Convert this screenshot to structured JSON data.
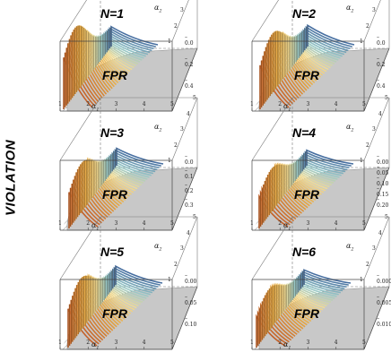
{
  "side_label": "VIOLATION",
  "floor_label": "FPR",
  "x_axis_label": "α",
  "x_axis_subscript": "1",
  "y_axis_label": "α",
  "y_axis_subscript": "2",
  "colors": {
    "floor": "#c8c8c8",
    "surface_stroke": "#3a2a10",
    "hatch": "#555555"
  },
  "chart_data": [
    {
      "type": "surface3d",
      "title": "N=1",
      "x_ticks": [
        "1",
        "2",
        "3",
        "4",
        "5"
      ],
      "y_ticks": [
        "1",
        "2",
        "3",
        "4",
        "5"
      ],
      "z_ticks": [
        "0.4",
        "0.2",
        "0.0"
      ],
      "z_ticks_shown": [
        "– 0.4",
        "– 0.2",
        "– 0.0"
      ],
      "peak": {
        "alpha1": 1.0,
        "height_frac": 1.0
      }
    },
    {
      "type": "surface3d",
      "title": "N=2",
      "x_ticks": [
        "1",
        "2",
        "3",
        "4",
        "5"
      ],
      "y_ticks": [
        "1",
        "2",
        "3",
        "4",
        "5"
      ],
      "z_ticks": [
        "0.4",
        "0.2",
        "0.0"
      ],
      "z_ticks_shown": [
        "– 0.4",
        "– 0.2",
        "– 0.0"
      ],
      "peak": {
        "alpha1": 1.5,
        "height_frac": 0.85
      }
    },
    {
      "type": "surface3d",
      "title": "N=3",
      "x_ticks": [
        "1",
        "2",
        "3",
        "4",
        "5"
      ],
      "y_ticks": [
        "1",
        "2",
        "3",
        "4",
        "5"
      ],
      "z_ticks": [
        "0.3",
        "0.2",
        "0.1",
        "0.0"
      ],
      "z_ticks_shown": [
        "– 0.3",
        "– 0.2",
        "– 0.1",
        "– 0.0"
      ],
      "peak": {
        "alpha1": 1.6,
        "height_frac": 0.7
      }
    },
    {
      "type": "surface3d",
      "title": "N=4",
      "x_ticks": [
        "1",
        "2",
        "3",
        "4",
        "5"
      ],
      "y_ticks": [
        "1",
        "2",
        "3",
        "4",
        "5"
      ],
      "z_ticks": [
        "0.20",
        "0.15",
        "0.10",
        "0.05",
        "0.00"
      ],
      "z_ticks_shown": [
        "– 0.20",
        "– 0.15",
        "– 0.10",
        "– 0.05",
        "– 0.00"
      ],
      "peak": {
        "alpha1": 1.4,
        "height_frac": 0.62
      }
    },
    {
      "type": "surface3d",
      "title": "N=5",
      "x_ticks": [
        "1",
        "2",
        "3",
        "4",
        "5"
      ],
      "y_ticks": [
        "1",
        "2",
        "3",
        "4",
        "5"
      ],
      "z_ticks": [
        "0.10",
        "0.05",
        "0.00"
      ],
      "z_ticks_shown": [
        "– 0.10",
        "– 0.05",
        "– 0.00"
      ],
      "peak": {
        "alpha1": 1.5,
        "height_frac": 0.75
      }
    },
    {
      "type": "surface3d",
      "title": "N=6",
      "x_ticks": [
        "1",
        "2",
        "3",
        "4",
        "5"
      ],
      "y_ticks": [
        "1",
        "2",
        "3",
        "4",
        "5"
      ],
      "z_ticks": [
        "0.010",
        "0.005",
        "0.000"
      ],
      "z_ticks_shown": [
        "– 0.010",
        "– 0.005",
        "– 0.000"
      ],
      "peak": {
        "alpha1": 1.1,
        "height_frac": 0.6
      }
    }
  ]
}
